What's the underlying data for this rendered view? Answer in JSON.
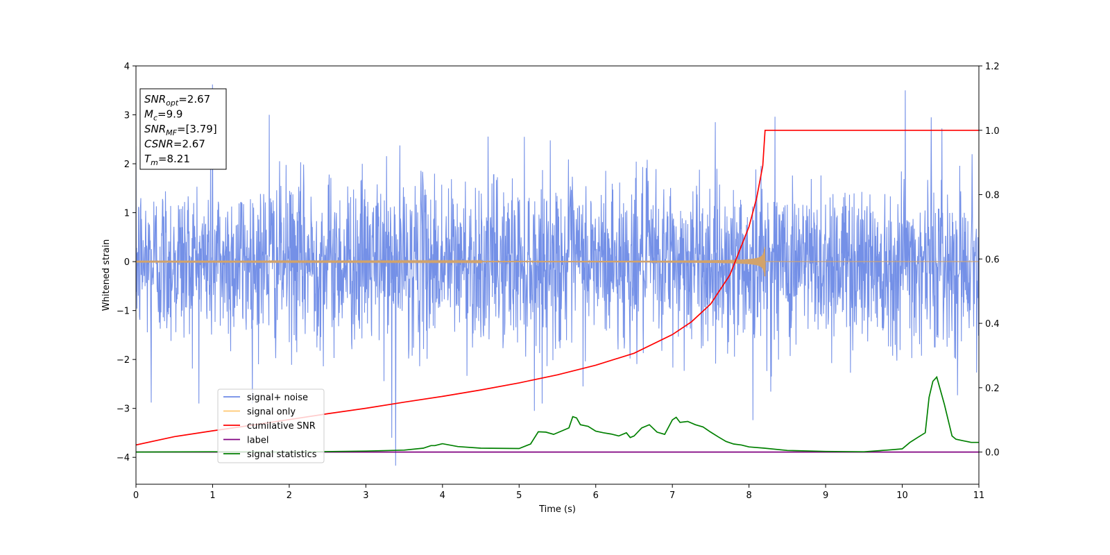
{
  "chart_data": {
    "type": "line",
    "xlabel": "Time (s)",
    "ylabel": "Whitened strain",
    "xlim": [
      0,
      11
    ],
    "ylim": [
      -4.55,
      4
    ],
    "ylim_right": [
      -0.1,
      1.2
    ],
    "x_ticks": [
      "0",
      "1",
      "2",
      "3",
      "4",
      "5",
      "6",
      "7",
      "8",
      "9",
      "10",
      "11"
    ],
    "y_ticks": [
      "4",
      "3",
      "2",
      "1",
      "0",
      "−1",
      "−2",
      "−3",
      "−4"
    ],
    "y_ticks_right": [
      "1.2",
      "1.0",
      "0.8",
      "0.6",
      "0.4",
      "0.2",
      "0.0"
    ],
    "grid": false,
    "legend_position": "lower-left",
    "info_box": [
      {
        "base": "SNR",
        "sub": "opt",
        "value": "=2.67"
      },
      {
        "base": "M",
        "sub": "c",
        "value": "=9.9"
      },
      {
        "base": "SNR",
        "sub": "MF",
        "value": "=[3.79]"
      },
      {
        "base": "CSNR",
        "sub": "",
        "value": "=2.67"
      },
      {
        "base": "T",
        "sub": "m",
        "value": "=8.21"
      }
    ],
    "series": [
      {
        "name": "signal+ noise",
        "axis": "left",
        "color": "#6d8ae6",
        "style": "noise",
        "noise_sigma": 0.85,
        "peaks": [
          [
            1.0,
            3.62
          ],
          [
            1.74,
            3.0
          ],
          [
            3.39,
            -4.17
          ],
          [
            8.34,
            2.96
          ],
          [
            10.04,
            3.5
          ],
          [
            10.38,
            2.95
          ],
          [
            8.05,
            -3.24
          ],
          [
            0.2,
            -2.88
          ],
          [
            3.34,
            -3.6
          ],
          [
            5.2,
            -3.05
          ]
        ]
      },
      {
        "name": "signal only",
        "axis": "left",
        "color": "#d2a36b",
        "style": "chirp",
        "merger_time": 8.21,
        "peak_amplitude": 0.3
      },
      {
        "name": "cumilative SNR",
        "axis": "right",
        "color": "#ff0000",
        "x": [
          0,
          0.5,
          1,
          1.5,
          2,
          2.5,
          3,
          3.5,
          4,
          4.5,
          5,
          5.5,
          6,
          6.5,
          7,
          7.25,
          7.5,
          7.75,
          8,
          8.1,
          8.18,
          8.21,
          11
        ],
        "y": [
          0.022,
          0.048,
          0.066,
          0.083,
          0.101,
          0.119,
          0.136,
          0.155,
          0.173,
          0.193,
          0.215,
          0.24,
          0.27,
          0.307,
          0.365,
          0.405,
          0.46,
          0.55,
          0.7,
          0.79,
          0.89,
          1.0,
          1.0
        ]
      },
      {
        "name": "label",
        "axis": "right",
        "color": "#800080",
        "x": [
          0,
          11
        ],
        "y": [
          0,
          0
        ]
      },
      {
        "name": "signal statistics",
        "axis": "right",
        "color": "#008000",
        "x": [
          0,
          1,
          2,
          3,
          3.5,
          3.75,
          3.85,
          3.9,
          4.0,
          4.2,
          4.5,
          5.0,
          5.15,
          5.25,
          5.35,
          5.45,
          5.55,
          5.65,
          5.7,
          5.75,
          5.8,
          5.9,
          6.0,
          6.1,
          6.2,
          6.3,
          6.4,
          6.45,
          6.5,
          6.6,
          6.7,
          6.8,
          6.9,
          7.0,
          7.05,
          7.1,
          7.2,
          7.3,
          7.4,
          7.5,
          7.6,
          7.7,
          7.8,
          7.9,
          8.0,
          8.2,
          8.5,
          9.0,
          9.5,
          9.8,
          10.0,
          10.1,
          10.2,
          10.3,
          10.35,
          10.4,
          10.45,
          10.55,
          10.65,
          10.7,
          10.8,
          10.9,
          11.0
        ],
        "y": [
          0.0,
          0.001,
          0.0,
          0.003,
          0.006,
          0.012,
          0.02,
          0.02,
          0.026,
          0.017,
          0.012,
          0.011,
          0.025,
          0.063,
          0.062,
          0.055,
          0.065,
          0.075,
          0.11,
          0.106,
          0.085,
          0.08,
          0.065,
          0.06,
          0.056,
          0.05,
          0.06,
          0.045,
          0.05,
          0.075,
          0.085,
          0.062,
          0.055,
          0.1,
          0.108,
          0.092,
          0.095,
          0.085,
          0.078,
          0.062,
          0.047,
          0.033,
          0.025,
          0.022,
          0.016,
          0.012,
          0.005,
          0.002,
          0.001,
          0.006,
          0.01,
          0.03,
          0.045,
          0.06,
          0.17,
          0.22,
          0.233,
          0.148,
          0.05,
          0.04,
          0.035,
          0.03,
          0.03
        ]
      }
    ]
  }
}
